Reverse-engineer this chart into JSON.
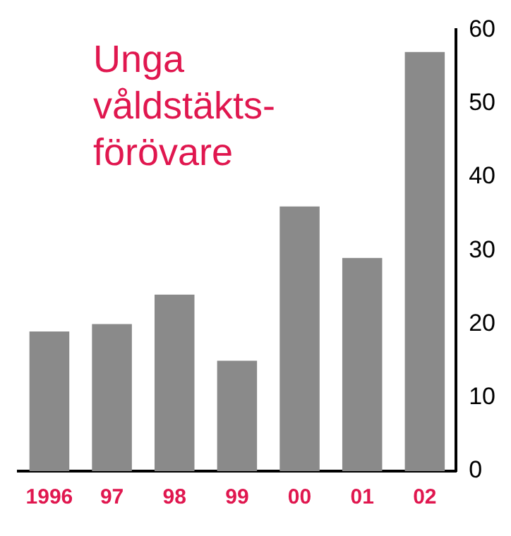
{
  "chart_data": {
    "type": "bar",
    "title": "Unga våldstäkts-förövare",
    "categories": [
      "1996",
      "97",
      "98",
      "99",
      "00",
      "01",
      "02"
    ],
    "values": [
      19,
      20,
      24,
      15,
      36,
      29,
      57
    ],
    "color": "#8a8a8a",
    "ylim": [
      0,
      60
    ],
    "yticks": [
      0,
      10,
      20,
      30,
      40,
      50,
      60
    ],
    "grid": false
  }
}
